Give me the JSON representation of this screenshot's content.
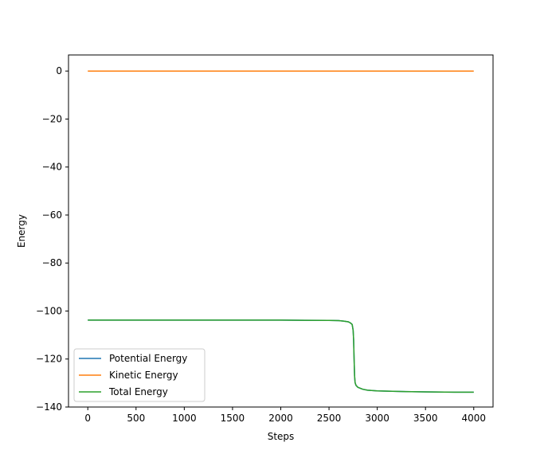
{
  "chart_data": {
    "type": "line",
    "xlabel": "Steps",
    "ylabel": "Energy",
    "xlim": [
      -200,
      4200
    ],
    "ylim": [
      -140,
      6.7
    ],
    "xticks": [
      0,
      500,
      1000,
      1500,
      2000,
      2500,
      3000,
      3500,
      4000
    ],
    "xtick_labels": [
      "0",
      "500",
      "1000",
      "1500",
      "2000",
      "2500",
      "3000",
      "3500",
      "4000"
    ],
    "yticks": [
      0,
      -20,
      -40,
      -60,
      -80,
      -100,
      -120,
      -140
    ],
    "ytick_labels": [
      "0",
      "−20",
      "−40",
      "−60",
      "−80",
      "−100",
      "−120",
      "−140"
    ],
    "grid": false,
    "legend_position": "lower-left",
    "series": [
      {
        "name": "Potential Energy",
        "color": "#1f77b4",
        "x": [
          0,
          500,
          1000,
          1500,
          2000,
          2500,
          2600,
          2650,
          2700,
          2720,
          2740,
          2750,
          2755,
          2760,
          2765,
          2770,
          2780,
          2800,
          2850,
          2900,
          3000,
          3200,
          3500,
          3800,
          4000
        ],
        "y": [
          -103.8,
          -103.8,
          -103.8,
          -103.8,
          -103.8,
          -103.9,
          -104.0,
          -104.2,
          -104.5,
          -104.9,
          -105.6,
          -108,
          -112,
          -120,
          -127,
          -129.8,
          -131.0,
          -131.8,
          -132.6,
          -133.0,
          -133.3,
          -133.5,
          -133.7,
          -133.8,
          -133.8
        ]
      },
      {
        "name": "Kinetic Energy",
        "color": "#ff7f0e",
        "x": [
          0,
          4000
        ],
        "y": [
          0,
          0
        ]
      },
      {
        "name": "Total Energy",
        "color": "#2ca02c",
        "x": [
          0,
          500,
          1000,
          1500,
          2000,
          2500,
          2600,
          2650,
          2700,
          2720,
          2740,
          2750,
          2755,
          2760,
          2765,
          2770,
          2780,
          2800,
          2850,
          2900,
          3000,
          3200,
          3500,
          3800,
          4000
        ],
        "y": [
          -103.8,
          -103.8,
          -103.8,
          -103.8,
          -103.8,
          -103.9,
          -104.0,
          -104.2,
          -104.5,
          -104.9,
          -105.6,
          -108,
          -112,
          -120,
          -127,
          -129.8,
          -131.0,
          -131.8,
          -132.6,
          -133.0,
          -133.3,
          -133.5,
          -133.7,
          -133.8,
          -133.8
        ]
      }
    ]
  }
}
